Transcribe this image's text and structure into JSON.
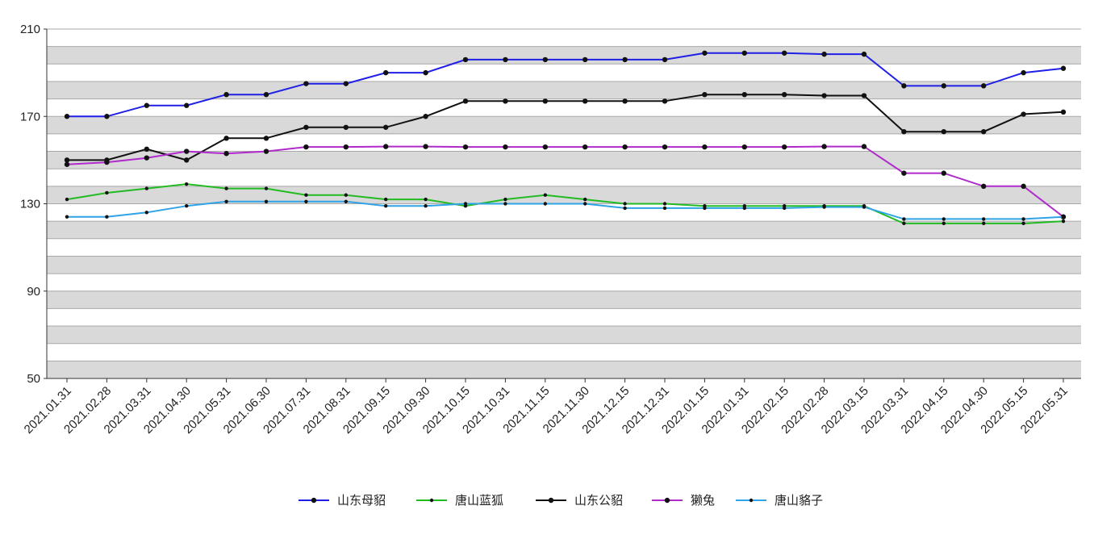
{
  "chart_data": {
    "type": "line",
    "title": "",
    "xlabel": "",
    "ylabel": "",
    "ylim": [
      50,
      210
    ],
    "yticks": [
      50,
      90,
      130,
      170,
      210
    ],
    "grid": "alternating horizontal bands",
    "legend_position": "bottom-center",
    "categories": [
      "2021.01.31",
      "2021.02.28",
      "2021.03.31",
      "2021.04.30",
      "2021.05.31",
      "2021.06.30",
      "2021.07.31",
      "2021.08.31",
      "2021.09.15",
      "2021.09.30",
      "2021.10.15",
      "2021.10.31",
      "2021.11.15",
      "2021.11.30",
      "2021.12.15",
      "2021.12.31",
      "2022.01.15",
      "2022.01.31",
      "2022.02.15",
      "2022.02.28",
      "2022.03.15",
      "2022.03.31",
      "2022.04.15",
      "2022.04.30",
      "2022.05.15",
      "2022.05.31"
    ],
    "series": [
      {
        "name": "山东母貂",
        "color": "#1f1fe6",
        "marker": "large",
        "values": [
          170,
          170,
          175,
          175,
          180,
          180,
          185,
          185,
          190,
          190,
          196,
          196,
          196,
          196,
          196,
          196,
          199,
          199,
          199,
          198.5,
          198.5,
          184,
          184,
          184,
          190,
          192
        ]
      },
      {
        "name": "唐山蓝狐",
        "color": "#22bb22",
        "marker": "small",
        "values": [
          132,
          135,
          137,
          139,
          137,
          137,
          134,
          134,
          132,
          132,
          129,
          132,
          134,
          132,
          130,
          130,
          129,
          129,
          129,
          129,
          129,
          121,
          121,
          121,
          121,
          122
        ]
      },
      {
        "name": "山东公貂",
        "color": "#111111",
        "marker": "large",
        "values": [
          150,
          150,
          155,
          150,
          160,
          160,
          165,
          165,
          165,
          170,
          177,
          177,
          177,
          177,
          177,
          177,
          180,
          180,
          180,
          179.5,
          179.5,
          163,
          163,
          163,
          171,
          172
        ]
      },
      {
        "name": "獭兔",
        "color": "#b02acc",
        "marker": "large",
        "values": [
          148,
          149,
          151,
          154,
          153,
          154,
          156,
          156,
          156.2,
          156.2,
          156,
          156,
          156,
          156,
          156,
          156,
          156,
          156,
          156,
          156.2,
          156.2,
          144,
          144,
          138,
          138,
          124
        ]
      },
      {
        "name": "唐山貉子",
        "color": "#2ea3e6",
        "marker": "small",
        "values": [
          124,
          124,
          126,
          129,
          131,
          131,
          131,
          131,
          129,
          129,
          130,
          130,
          130,
          130,
          128,
          128,
          128,
          128,
          128,
          128.5,
          128.5,
          123,
          123,
          123,
          123,
          124
        ]
      }
    ]
  }
}
